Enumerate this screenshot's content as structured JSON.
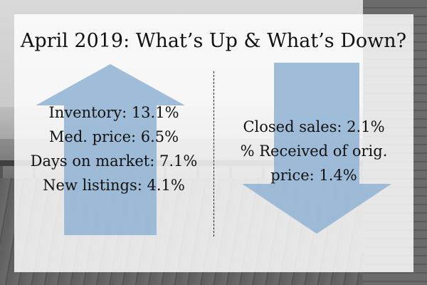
{
  "title": "April 2019: What’s Up & What’s Down?",
  "colors": {
    "arrow": "#8fb3d3",
    "panel": "#ffffff",
    "text": "#111111"
  },
  "up": {
    "icon": "arrow-up-icon",
    "items": [
      "Inventory: 13.1%",
      "Med. price: 6.5%",
      "Days on market: 7.1%",
      "New listings: 4.1%"
    ]
  },
  "down": {
    "icon": "arrow-down-icon",
    "items": [
      "Closed sales: 2.1%",
      "% Received of orig.",
      "price: 1.4%"
    ]
  }
}
